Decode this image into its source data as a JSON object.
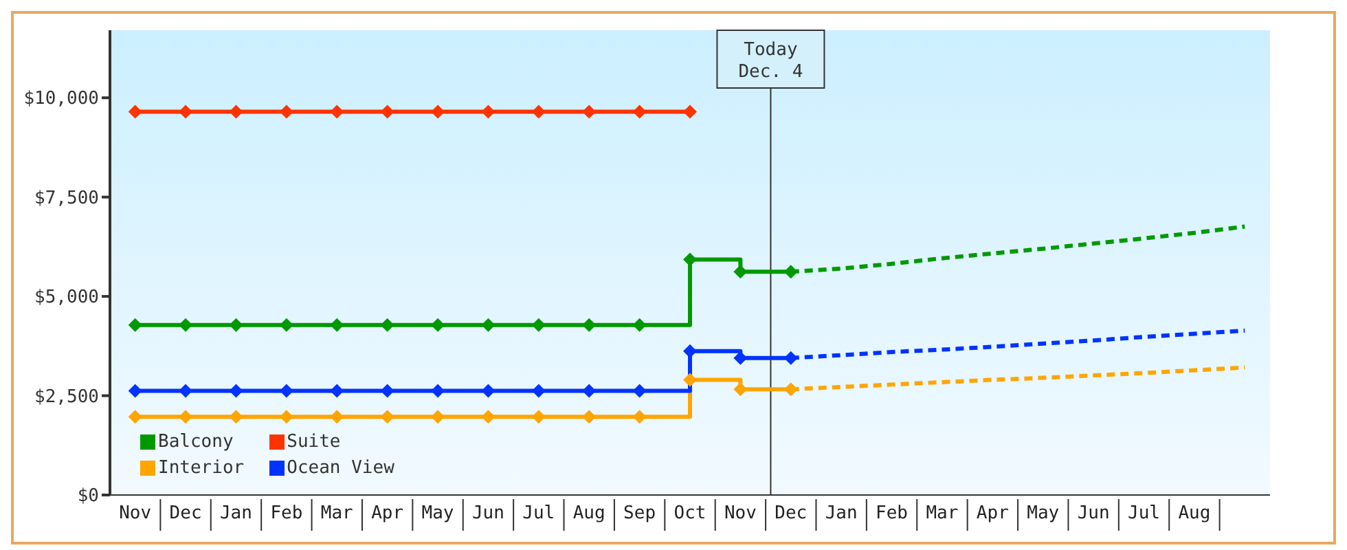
{
  "chart_data": {
    "type": "step",
    "marker": "diamond",
    "legend": "bottom left",
    "grid": false,
    "categories": [
      "Nov",
      "Dec",
      "Jan",
      "Feb",
      "Mar",
      "Apr",
      "May",
      "Jun",
      "Jul",
      "Aug",
      "Sep",
      "Oct",
      "Nov",
      "Dec",
      "Jan",
      "Feb",
      "Mar",
      "Apr",
      "May",
      "Jun",
      "Jul",
      "Aug",
      null
    ],
    "ylim": [
      0,
      11700
    ],
    "yticks": [
      {
        "value": 0,
        "label": "$0"
      },
      {
        "value": 2500,
        "label": "$2,500"
      },
      {
        "value": 5000,
        "label": "$5,000"
      },
      {
        "value": 7500,
        "label": "$7,500"
      },
      {
        "value": 10000,
        "label": "$10,000"
      }
    ],
    "annotations": [
      "Today\nDec. 4"
    ],
    "series": [
      {
        "name": "Balcony",
        "color": "#009900",
        "values": [
          4280,
          4280,
          4280,
          4280,
          4280,
          4280,
          4280,
          4280,
          4280,
          4280,
          4280,
          5930,
          5620,
          5620,
          null,
          null,
          null,
          null,
          null,
          null,
          null,
          null,
          null
        ]
      },
      {
        "name": "Suite",
        "color": "#ff3300",
        "values": [
          9650,
          9650,
          9650,
          9650,
          9650,
          9650,
          9650,
          9650,
          9650,
          9650,
          9650,
          9650,
          null,
          null,
          null,
          null,
          null,
          null,
          null,
          null,
          null,
          null,
          null
        ]
      },
      {
        "name": "Interior",
        "color": "#ffa500",
        "values": [
          1970,
          1970,
          1970,
          1970,
          1970,
          1970,
          1970,
          1970,
          1970,
          1970,
          1970,
          2900,
          2660,
          2660,
          null,
          null,
          null,
          null,
          null,
          null,
          null,
          null,
          null
        ]
      },
      {
        "name": "Ocean View",
        "color": "#0033ff",
        "values": [
          2620,
          2620,
          2620,
          2620,
          2620,
          2620,
          2620,
          2620,
          2620,
          2620,
          2620,
          3620,
          3450,
          3450,
          null,
          null,
          null,
          null,
          null,
          null,
          null,
          null,
          null
        ]
      },
      {
        "type": "line",
        "color": "#009900",
        "line_style": "dashed",
        "marker": "none",
        "values": [
          null,
          null,
          null,
          null,
          null,
          null,
          null,
          null,
          null,
          null,
          null,
          null,
          null,
          5620,
          5700,
          5820,
          5960,
          6080,
          6200,
          6330,
          6460,
          6600,
          6760
        ]
      },
      {
        "type": "line",
        "color": "#ffa500",
        "line_style": "dashed",
        "marker": "none",
        "values": [
          null,
          null,
          null,
          null,
          null,
          null,
          null,
          null,
          null,
          null,
          null,
          null,
          null,
          2660,
          2720,
          2780,
          2840,
          2900,
          2950,
          3010,
          3070,
          3140,
          3210
        ]
      },
      {
        "type": "line",
        "color": "#0033ff",
        "line_style": "dashed",
        "marker": "none",
        "values": [
          null,
          null,
          null,
          null,
          null,
          null,
          null,
          null,
          null,
          null,
          null,
          null,
          null,
          3450,
          3520,
          3600,
          3660,
          3730,
          3810,
          3890,
          3980,
          4060,
          4140
        ]
      }
    ]
  }
}
